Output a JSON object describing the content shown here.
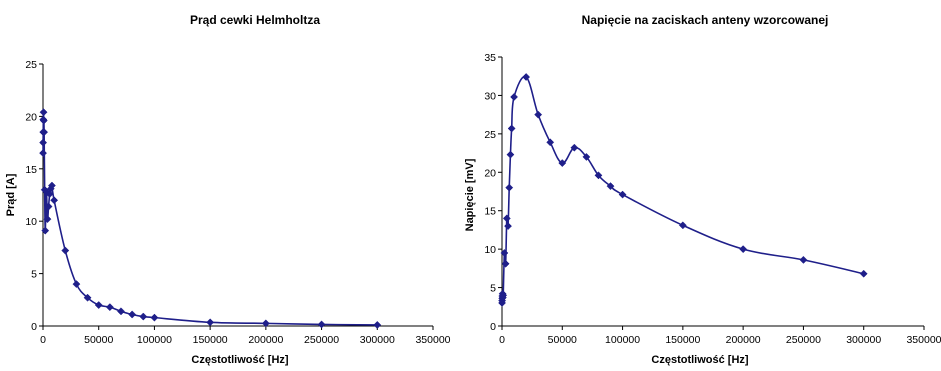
{
  "chart_data": [
    {
      "type": "line",
      "title": "Prąd cewki Helmholtza",
      "xlabel": "Częstotliwość [Hz]",
      "ylabel": "Prąd [A]",
      "xlim": [
        0,
        350000
      ],
      "ylim": [
        0,
        25
      ],
      "xticks": [
        "0",
        "50000",
        "100000",
        "150000",
        "200000",
        "250000",
        "300000",
        "350000"
      ],
      "yticks": [
        "0",
        "5",
        "10",
        "15",
        "20",
        "25"
      ],
      "grid": false,
      "legend": "none",
      "color": "#1f1f8a",
      "x": [
        50,
        100,
        200,
        300,
        500,
        700,
        1000,
        1500,
        2000,
        3000,
        4000,
        5000,
        6000,
        7000,
        8000,
        10000,
        20000,
        30000,
        40000,
        50000,
        60000,
        70000,
        80000,
        90000,
        100000,
        150000,
        200000,
        250000,
        300000
      ],
      "y": [
        16.5,
        17.5,
        18.5,
        19.7,
        20.4,
        19.6,
        18.5,
        13.0,
        9.1,
        12.8,
        10.2,
        11.4,
        12.6,
        13.1,
        13.4,
        12.0,
        7.2,
        4.0,
        2.7,
        2.0,
        1.8,
        1.4,
        1.1,
        0.9,
        0.8,
        0.35,
        0.25,
        0.15,
        0.1
      ]
    },
    {
      "type": "line",
      "title": "Napięcie na zaciskach anteny wzorcowanej",
      "xlabel": "Częstotliwość [Hz]",
      "ylabel": "Napięcie [mV]",
      "xlim": [
        0,
        350000
      ],
      "ylim": [
        0,
        35
      ],
      "xticks": [
        "0",
        "50000",
        "100000",
        "150000",
        "200000",
        "250000",
        "300000",
        "350000"
      ],
      "yticks": [
        "0",
        "5",
        "10",
        "15",
        "20",
        "25",
        "30",
        "35"
      ],
      "grid": false,
      "legend": "none",
      "color": "#1f1f8a",
      "x": [
        50,
        100,
        200,
        300,
        500,
        700,
        1000,
        2000,
        3000,
        4000,
        5000,
        6000,
        7000,
        8000,
        10000,
        20000,
        30000,
        40000,
        50000,
        60000,
        70000,
        80000,
        90000,
        100000,
        150000,
        200000,
        250000,
        300000
      ],
      "y": [
        3.0,
        3.3,
        3.6,
        3.9,
        4.2,
        3.7,
        4.0,
        9.5,
        8.1,
        14.0,
        13.0,
        18.0,
        22.3,
        25.7,
        29.8,
        32.4,
        27.5,
        23.9,
        21.2,
        23.2,
        22.0,
        19.6,
        18.2,
        17.1,
        13.1,
        10.0,
        8.6,
        6.8
      ]
    }
  ]
}
